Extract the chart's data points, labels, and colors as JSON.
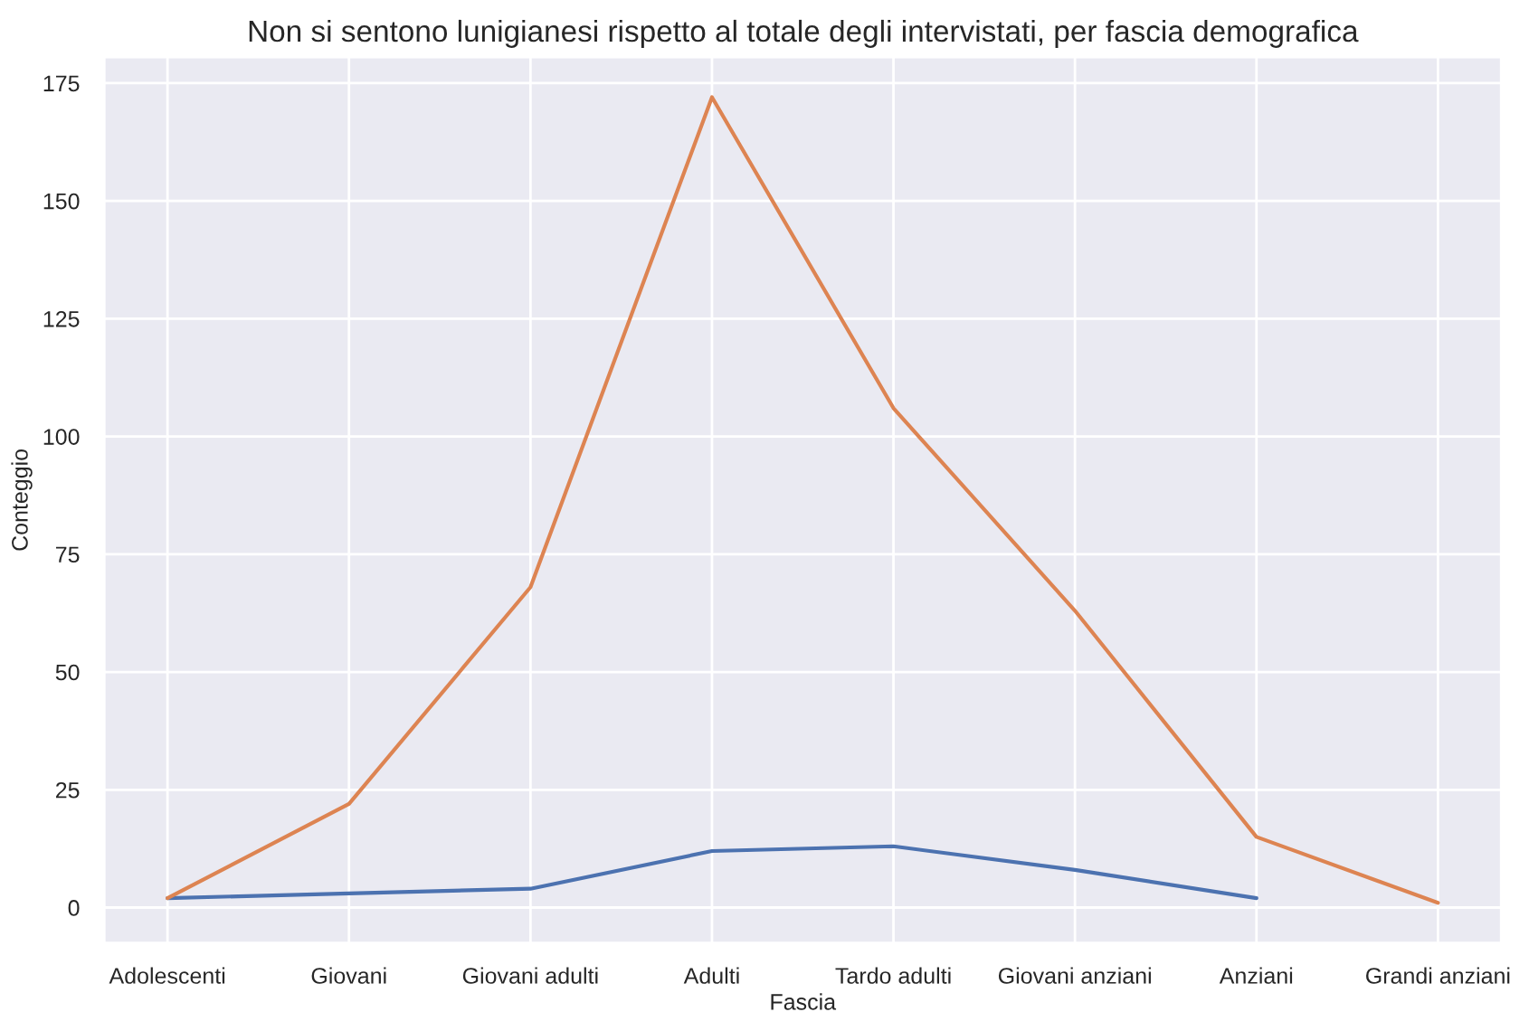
{
  "chart_data": {
    "type": "line",
    "title": "Non si sentono lunigianesi rispetto al totale degli intervistati, per fascia demografica",
    "xlabel": "Fascia",
    "ylabel": "Conteggio",
    "categories": [
      "Adolescenti",
      "Giovani",
      "Giovani adulti",
      "Adulti",
      "Tardo adulti",
      "Giovani anziani",
      "Anziani",
      "Grandi anziani"
    ],
    "series": [
      {
        "color": "#4c72b0",
        "values": [
          2,
          3,
          4,
          12,
          13,
          8,
          2,
          null
        ]
      },
      {
        "color": "#dd8452",
        "values": [
          2,
          22,
          68,
          172,
          106,
          63,
          15,
          1
        ]
      }
    ],
    "ylim": [
      -7.6,
      180.6
    ],
    "yticks": [
      0,
      25,
      50,
      75,
      100,
      125,
      150,
      175
    ],
    "grid": true,
    "marker": "none",
    "line_style": "solid"
  }
}
